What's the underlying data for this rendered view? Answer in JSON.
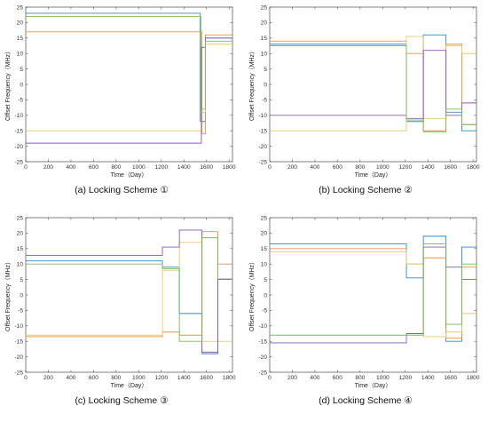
{
  "chart_data": [
    {
      "type": "line",
      "caption": "(a)  Locking Scheme ①",
      "xlabel": "Time（Day）",
      "ylabel": "Offset Frequency（MHz）",
      "xlim": [
        0,
        1830
      ],
      "ylim": [
        -25,
        25
      ],
      "xticks": [
        0,
        200,
        400,
        600,
        800,
        1000,
        1200,
        1400,
        1600,
        1800
      ],
      "yticks": [
        -25,
        -20,
        -15,
        -10,
        -5,
        0,
        5,
        10,
        15,
        20,
        25
      ],
      "series": [
        {
          "color": "#2e8bc0",
          "x": [
            0,
            1545,
            1545,
            1590,
            1590,
            1830
          ],
          "y": [
            23,
            23,
            -12,
            -12,
            15,
            15
          ]
        },
        {
          "color": "#e8904a",
          "x": [
            0,
            1560,
            1560,
            1590,
            1590,
            1830
          ],
          "y": [
            17,
            17,
            -16,
            -16,
            16,
            16
          ]
        },
        {
          "color": "#e8c86a",
          "x": [
            0,
            1555,
            1555,
            1590,
            1590,
            1830
          ],
          "y": [
            -15,
            -15,
            -9,
            -9,
            13,
            13
          ]
        },
        {
          "color": "#8a5ab0",
          "x": [
            0,
            1555,
            1555,
            1590,
            1590,
            1830
          ],
          "y": [
            -19,
            -19,
            12,
            12,
            15,
            15
          ]
        },
        {
          "color": "#7ab85a",
          "x": [
            0,
            1550,
            1550,
            1590,
            1590,
            1830
          ],
          "y": [
            22,
            22,
            -8,
            -8,
            14,
            14
          ]
        }
      ]
    },
    {
      "type": "line",
      "caption": "(b)  Locking Scheme ②",
      "xlabel": "Time（Day）",
      "ylabel": "Offset Frequency（MHz）",
      "xlim": [
        0,
        1830
      ],
      "ylim": [
        -25,
        25
      ],
      "xticks": [
        0,
        200,
        400,
        600,
        800,
        1000,
        1200,
        1400,
        1600,
        1800
      ],
      "yticks": [
        -25,
        -20,
        -15,
        -10,
        -5,
        0,
        5,
        10,
        15,
        20,
        25
      ],
      "series": [
        {
          "color": "#2e8bc0",
          "x": [
            0,
            1210,
            1210,
            1360,
            1360,
            1560,
            1560,
            1700,
            1700,
            1830
          ],
          "y": [
            13,
            13,
            -12,
            -12,
            16,
            16,
            -9,
            -9,
            -15,
            -15
          ]
        },
        {
          "color": "#e8904a",
          "x": [
            0,
            1210,
            1210,
            1360,
            1360,
            1560,
            1560,
            1700,
            1700,
            1830
          ],
          "y": [
            14,
            14,
            10,
            10,
            -15,
            -15,
            13,
            13,
            -13,
            -13
          ]
        },
        {
          "color": "#e8c86a",
          "x": [
            0,
            1210,
            1210,
            1360,
            1360,
            1560,
            1560,
            1700,
            1700,
            1830
          ],
          "y": [
            -15,
            -15,
            15.5,
            15.5,
            -11,
            -11,
            12.5,
            12.5,
            10,
            10
          ]
        },
        {
          "color": "#8a5ab0",
          "x": [
            0,
            1210,
            1210,
            1360,
            1360,
            1560,
            1560,
            1700,
            1700,
            1830
          ],
          "y": [
            -10,
            -10,
            -11,
            -11,
            11,
            11,
            -10,
            -10,
            -6,
            -6
          ]
        },
        {
          "color": "#7ab85a",
          "x": [
            0,
            1210,
            1210,
            1360,
            1360,
            1560,
            1560,
            1700,
            1700,
            1830
          ],
          "y": [
            12.5,
            12.5,
            -11.5,
            -11.5,
            -15.3,
            -15.3,
            -8,
            -8,
            -13,
            -13
          ]
        }
      ]
    },
    {
      "type": "line",
      "caption": "(c)  Locking Scheme ③",
      "xlabel": "Time（Day）",
      "ylabel": "Offset Frequency（MHz）",
      "xlim": [
        0,
        1830
      ],
      "ylim": [
        -25,
        25
      ],
      "xticks": [
        0,
        200,
        400,
        600,
        800,
        1000,
        1200,
        1400,
        1600,
        1800
      ],
      "yticks": [
        -25,
        -20,
        -15,
        -10,
        -5,
        0,
        5,
        10,
        15,
        20,
        25
      ],
      "series": [
        {
          "color": "#2e8bc0",
          "x": [
            0,
            1210,
            1210,
            1360,
            1360,
            1560,
            1560,
            1700,
            1700,
            1830
          ],
          "y": [
            11,
            11,
            9,
            9,
            -6,
            -6,
            -19,
            -19,
            5,
            5
          ]
        },
        {
          "color": "#e8904a",
          "x": [
            0,
            1210,
            1210,
            1360,
            1360,
            1560,
            1560,
            1700,
            1700,
            1830
          ],
          "y": [
            -13.5,
            -13.5,
            -12,
            -12,
            -13,
            -13,
            20.5,
            20.5,
            10,
            10
          ]
        },
        {
          "color": "#e8c86a",
          "x": [
            0,
            1210,
            1210,
            1360,
            1360,
            1560,
            1560,
            1700,
            1700,
            1830
          ],
          "y": [
            -13,
            -13,
            8,
            8,
            17,
            17,
            -15,
            -15,
            -15,
            -15
          ]
        },
        {
          "color": "#8a5ab0",
          "x": [
            0,
            1210,
            1210,
            1360,
            1360,
            1560,
            1560,
            1700,
            1700,
            1830
          ],
          "y": [
            12.8,
            12.8,
            15.5,
            15.5,
            21,
            21,
            -18.5,
            -18.5,
            5,
            5
          ]
        },
        {
          "color": "#7ab85a",
          "x": [
            0,
            1210,
            1210,
            1360,
            1360,
            1560,
            1560,
            1700,
            1700,
            1830
          ],
          "y": [
            10,
            10,
            8.5,
            8.5,
            -15,
            -15,
            18.5,
            18.5,
            5.2,
            5.2
          ]
        }
      ]
    },
    {
      "type": "line",
      "caption": "(d)  Locking Scheme ④",
      "xlabel": "Time（Day）",
      "ylabel": "Offset Frequency（MHz）",
      "xlim": [
        0,
        1830
      ],
      "ylim": [
        -25,
        25
      ],
      "xticks": [
        0,
        200,
        400,
        600,
        800,
        1000,
        1200,
        1400,
        1600,
        1800
      ],
      "yticks": [
        -25,
        -20,
        -15,
        -10,
        -5,
        0,
        5,
        10,
        15,
        20,
        25
      ],
      "series": [
        {
          "color": "#2e8bc0",
          "x": [
            0,
            1210,
            1210,
            1360,
            1360,
            1560,
            1560,
            1700,
            1700,
            1830
          ],
          "y": [
            16.5,
            16.5,
            5.5,
            5.5,
            19,
            19,
            -15,
            -15,
            15.5,
            15.5
          ]
        },
        {
          "color": "#e8904a",
          "x": [
            0,
            1210,
            1210,
            1360,
            1360,
            1560,
            1560,
            1700,
            1700,
            1830
          ],
          "y": [
            15,
            15,
            10,
            10,
            12,
            12,
            -14,
            -14,
            9,
            9
          ]
        },
        {
          "color": "#e8c86a",
          "x": [
            0,
            1210,
            1210,
            1360,
            1360,
            1560,
            1560,
            1700,
            1700,
            1830
          ],
          "y": [
            14,
            14,
            10,
            10,
            -13.5,
            -13.5,
            -12,
            -12,
            -6,
            -6
          ]
        },
        {
          "color": "#8a5ab0",
          "x": [
            0,
            1210,
            1210,
            1360,
            1360,
            1560,
            1560,
            1700,
            1700,
            1830
          ],
          "y": [
            -15.5,
            -15.5,
            -12.5,
            -12.5,
            15.5,
            15.5,
            9,
            9,
            5,
            5
          ]
        },
        {
          "color": "#7ab85a",
          "x": [
            0,
            1210,
            1210,
            1360,
            1360,
            1560,
            1560,
            1700,
            1700,
            1830
          ],
          "y": [
            -13,
            -13,
            -13,
            -13,
            16.5,
            16.5,
            -9.5,
            -9.5,
            10,
            10
          ]
        }
      ]
    }
  ]
}
